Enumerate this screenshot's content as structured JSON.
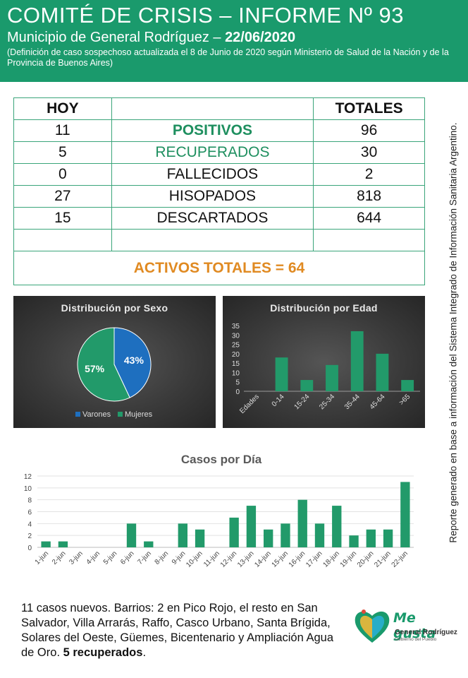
{
  "header": {
    "title": "COMITÉ DE CRISIS – INFORME Nº 93",
    "subtitle_prefix": "Municipio de General Rodríguez – ",
    "subtitle_date": "22/06/2020",
    "note": "(Definición de caso sospechoso actualizada el 8 de Junio de 2020 según Ministerio de Salud de la Nación y de la Provincia de Buenos Aires)"
  },
  "stats": {
    "col_today": "HOY",
    "col_total": "TOTALES",
    "rows": [
      {
        "today": "11",
        "label": "POSITIVOS",
        "total": "96"
      },
      {
        "today": "5",
        "label": "RECUPERADOS",
        "total": "30"
      },
      {
        "today": "0",
        "label": "FALLECIDOS",
        "total": "2"
      },
      {
        "today": "27",
        "label": "HISOPADOS",
        "total": "818"
      },
      {
        "today": "15",
        "label": "DESCARTADOS",
        "total": "644"
      }
    ],
    "active_total": "ACTIVOS TOTALES = 64"
  },
  "side_note": "Reporte generado en base a información del Sistema Integrado de Información Sanitaria Argentino.",
  "chart_data": [
    {
      "type": "pie",
      "title": "Distribución por Sexo",
      "labels": [
        "Varones",
        "Mujeres"
      ],
      "values": [
        43,
        57
      ],
      "data_labels": [
        "43%",
        "57%"
      ],
      "colors": [
        "#1e6fbf",
        "#229a6a"
      ],
      "legend": "bottom"
    },
    {
      "type": "bar",
      "title": "Distribución por Edad",
      "categories": [
        "Edades",
        "0-14",
        "15-24",
        "25-34",
        "35-44",
        "45-64",
        ">65"
      ],
      "values": [
        0,
        18,
        6,
        14,
        32,
        20,
        6
      ],
      "ylim": [
        0,
        35
      ],
      "yticks": [
        0,
        5,
        10,
        15,
        20,
        25,
        30,
        35
      ],
      "color": "#229a6a"
    },
    {
      "type": "bar",
      "title": "Casos por Día",
      "categories": [
        "1-jun",
        "2-jun",
        "3-jun",
        "4-jun",
        "5-jun",
        "6-jun",
        "7-jun",
        "8-jun",
        "9-jun",
        "10-jun",
        "11-jun",
        "12-jun",
        "13-jun",
        "14-jun",
        "15-jun",
        "16-jun",
        "17-jun",
        "18-jun",
        "19-jun",
        "20-jun",
        "21-jun",
        "22-jun"
      ],
      "values": [
        1,
        1,
        0,
        0,
        0,
        4,
        1,
        0,
        4,
        3,
        0,
        5,
        7,
        3,
        4,
        8,
        4,
        7,
        2,
        3,
        3,
        11
      ],
      "ylim": [
        0,
        12
      ],
      "yticks": [
        0,
        2,
        4,
        6,
        8,
        10,
        12
      ],
      "color": "#229a6a"
    }
  ],
  "footer": {
    "text": "11 casos nuevos. Barrios: 2 en Pico Rojo, el resto en San Salvador, Villa Arrarás, Raffo, Casco Urbano, Santa Brígida, Solares del Oeste, Güemes, Bicentenario y Ampliación Agua de Oro. ",
    "bold": "5 recuperados",
    "end": "."
  },
  "logo": {
    "brand": "Me gusta",
    "org": "General Rodríguez",
    "tagline": "Gobierno del Pueblo"
  }
}
